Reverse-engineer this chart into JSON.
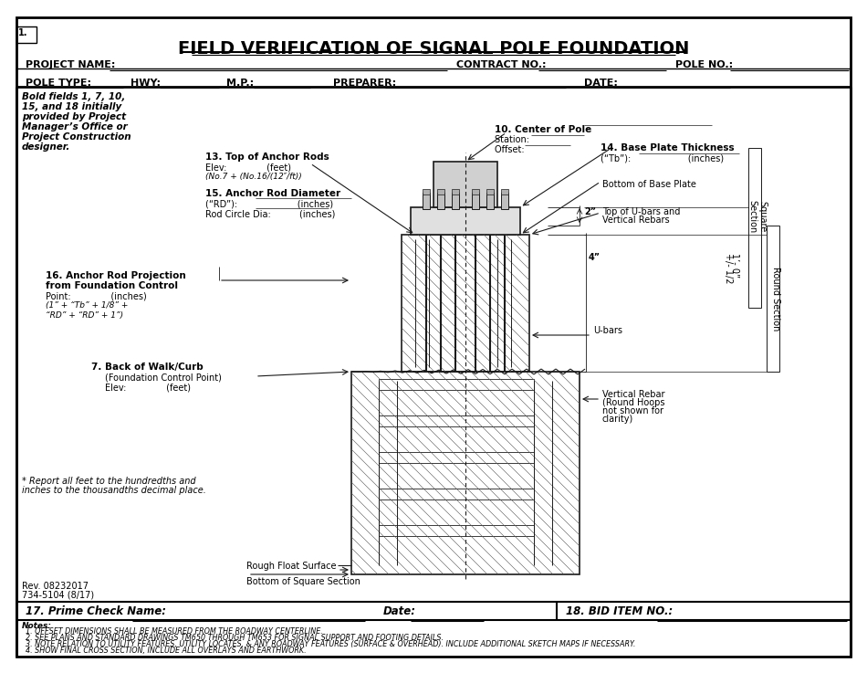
{
  "title": "FIELD VERIFICATION OF SIGNAL POLE FOUNDATION",
  "page_num": "1.",
  "bg_color": "#ffffff",
  "border_color": "#000000",
  "header_fields": {
    "project_name_label": "PROJECT NAME:",
    "contract_no_label": "CONTRACT NO.:",
    "pole_no_label": "POLE NO.:",
    "pole_type_label": "POLE TYPE:",
    "hwy_label": "HWY:",
    "mp_label": "M.P.:",
    "preparer_label": "PREPARER:",
    "date_label": "DATE:"
  },
  "left_notes": [
    "Bold fields 1, 7, 10,",
    "15, and 18 initially",
    "provided by Project",
    "Manager’s Office or",
    "Project Construction",
    "designer."
  ],
  "field_labels": {
    "f13": "13. Top of Anchor Rods",
    "f13_elev": "Elev:              (feet)",
    "f13_formula": "(No.7 + (No.16/(12″/ft))",
    "f15": "15. Anchor Rod Diameter",
    "f15_rd": "(“RD”):                     (inches)",
    "f15_rod": "Rod Circle Dia:          (inches)",
    "f16": "16. Anchor Rod Projection",
    "f16_sub": "from Foundation Control",
    "f16_point": "Point:              (inches)",
    "f16_formula1": "(1” + “Tb” + 1/8” +",
    "f16_formula2": "“RD” + “RD” + 1”)",
    "f7": "7. Back of Walk/Curb",
    "f7_sub": "(Foundation Control Point)",
    "f7_elev": "Elev:              (feet)",
    "f10": "10. Center of Pole",
    "f10_station": "Station:         ",
    "f10_offset": "Offset:        ",
    "f14": "14. Base Plate Thickness",
    "f14_tb": "(“Tb”):                    (inches)",
    "f_bottom_base": "Bottom of Base Plate",
    "f_top_ubars": "Top of U-bars and",
    "f_top_ubars2": "Vertical Rebars",
    "f_ubars": "U-bars",
    "f_vert_rebar": "Vertical Rebar",
    "f_vert_rebar2": "(Round Hoops",
    "f_vert_rebar3": "not shown for",
    "f_vert_rebar4": "clarity)",
    "f_rough": "Rough Float Surface",
    "f_bottom_sq": "Bottom of Square Section",
    "f_sq_section": "Square\nSection",
    "f_round_section": "Round Section",
    "dim_2in": "2”",
    "dim_4in": "4”",
    "dim_1ft": "1’- 0”",
    "dim_half": "+/- 1/2"
  },
  "bottom_fields": {
    "prime_check": "17. Prime Check Name:",
    "date_label": "Date:",
    "bid_item": "18. BID ITEM NO.:"
  },
  "notes_title": "Notes:",
  "notes": [
    "1. OFFSET DIMENSIONS SHALL BE MEASURED FROM THE ROADWAY CENTERLINE.",
    "2. SEE PLANS AND STANDARD DRAWINGS TM650 THROUGH TM653 FOR SIGNAL SUPPORT AND FOOTING DETAILS.",
    "3. NOTE RELATION TO UTILITY FEATURES, UTILITY LOCATES, & ANY ROADWAY FEATURES (SURFACE & OVERHEAD). INCLUDE ADDITIONAL SKETCH MAPS IF NECESSARY.",
    "4. SHOW FINAL CROSS SECTION, INCLUDE ALL OVERLAYS AND EARTHWORK."
  ],
  "rev_text": "Rev. 08232017",
  "form_num": "734-5104 (8/17)",
  "report_note": "* Report all feet to the hundredths and",
  "report_note2": "inches to the thousandths decimal place."
}
